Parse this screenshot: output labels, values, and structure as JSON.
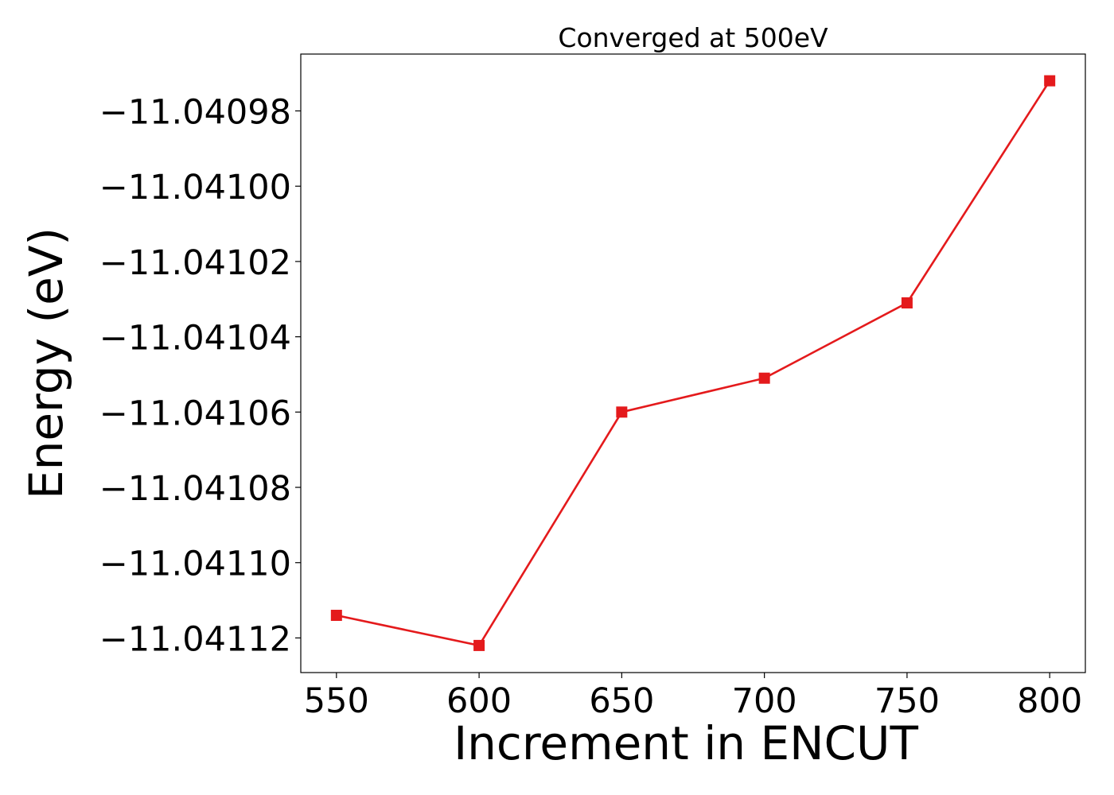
{
  "chart_data": {
    "type": "line",
    "title": "Converged at 500eV",
    "xlabel": "Increment in ENCUT",
    "ylabel": "Energy (eV)",
    "x": [
      550,
      600,
      650,
      700,
      750,
      800
    ],
    "series": [
      {
        "values": [
          -11.041114,
          -11.041122,
          -11.04106,
          -11.041051,
          -11.041031,
          -11.040972
        ],
        "color": "#e41a1c",
        "marker": "square"
      }
    ],
    "xticks": [
      550,
      600,
      650,
      700,
      750,
      800
    ],
    "xtick_labels": [
      "550",
      "600",
      "650",
      "700",
      "750",
      "800"
    ],
    "yticks": [
      -11.04112,
      -11.0411,
      -11.04108,
      -11.04106,
      -11.04104,
      -11.04102,
      -11.041,
      -11.04098
    ],
    "ytick_labels": [
      "−11.04112",
      "−11.04110",
      "−11.04108",
      "−11.04106",
      "−11.04104",
      "−11.04102",
      "−11.04100",
      "−11.04098"
    ],
    "xlim": [
      537.5,
      812.5
    ],
    "ylim": [
      -11.0411292,
      -11.0409649
    ],
    "grid": false,
    "legend": "none"
  }
}
